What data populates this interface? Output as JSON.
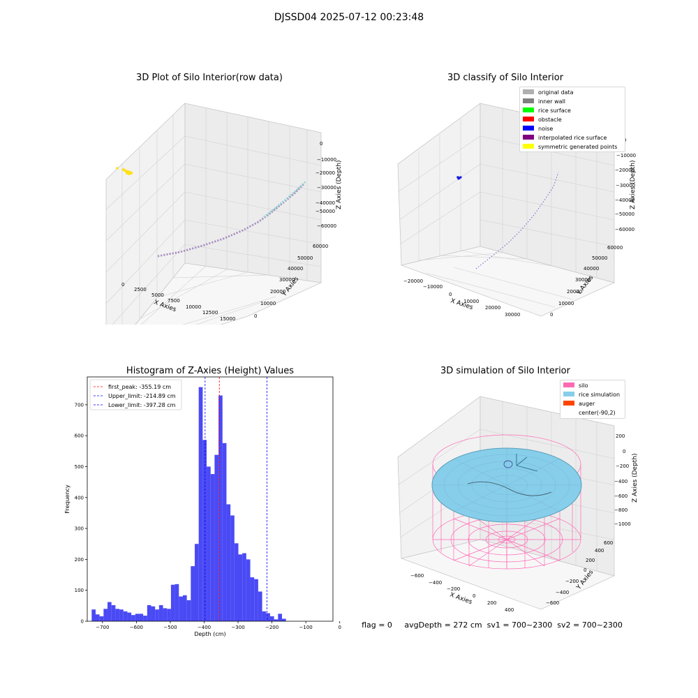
{
  "figure": {
    "title": "DJSSD04 2025-07-12 00:23:48"
  },
  "panels": {
    "raw": {
      "title": "3D Plot of Silo Interior(row data)",
      "xlabel": "X Axies",
      "ylabel": "Y Axies",
      "zlabel": "Z Axies (Depth)",
      "x_ticks": [
        "0",
        "2500",
        "5000",
        "7500",
        "10000",
        "12500",
        "15000"
      ],
      "y_ticks": [
        "0",
        "10000",
        "20000",
        "30000",
        "40000",
        "50000",
        "60000"
      ],
      "z_ticks": [
        "0",
        "−10000",
        "−20000",
        "−30000",
        "−40000",
        "−50000",
        "−60000"
      ]
    },
    "classify": {
      "title": "3D classify of Silo Interior",
      "xlabel": "X Axies",
      "ylabel": "Y Axies",
      "zlabel": "Z Axies (Depth)",
      "x_ticks": [
        "−20000",
        "−10000",
        "0",
        "10000",
        "20000",
        "30000"
      ],
      "y_ticks": [
        "0",
        "10000",
        "20000",
        "30000",
        "40000",
        "50000",
        "60000"
      ],
      "z_ticks": [
        "0",
        "−10000",
        "−20000",
        "−30000",
        "−40000",
        "−50000",
        "−60000"
      ],
      "legend": [
        {
          "label": "original data",
          "color": "#b0b0b0"
        },
        {
          "label": "inner wall",
          "color": "#808080"
        },
        {
          "label": "rice surface",
          "color": "#00ff00"
        },
        {
          "label": "obstacle",
          "color": "#ff0000"
        },
        {
          "label": "noise",
          "color": "#0000ff"
        },
        {
          "label": "interpolated rice surface",
          "color": "#800080"
        },
        {
          "label": "symmetric generated points",
          "color": "#ffff00"
        }
      ]
    },
    "simulation": {
      "title": "3D simulation of Silo Interior",
      "xlabel": "X Axies",
      "ylabel": "Y Axies",
      "zlabel": "Z Axies (Depth)",
      "x_ticks": [
        "−600",
        "−400",
        "−200",
        "0",
        "200",
        "400"
      ],
      "y_ticks": [
        "−600",
        "−400",
        "−200",
        "0",
        "200",
        "400",
        "600"
      ],
      "z_ticks": [
        "200",
        "0",
        "−200",
        "−400",
        "−600",
        "−800",
        "−1000"
      ],
      "legend": [
        {
          "label": "silo",
          "color": "#ff69b4"
        },
        {
          "label": "rice simulation",
          "color": "#87ceeb"
        },
        {
          "label": "auger",
          "color": "#ff4500"
        },
        {
          "label": "center(-90,2)",
          "color": ""
        }
      ]
    }
  },
  "chart_data": {
    "type": "bar",
    "title": "Histogram of Z-Axies (Height) Values",
    "xlabel": "Depth (cm)",
    "ylabel": "Frequency",
    "xlim": [
      -745,
      -20
    ],
    "ylim": [
      0,
      790
    ],
    "x_ticks": [
      -700,
      -600,
      -500,
      -400,
      -300,
      -200,
      -100,
      0
    ],
    "y_ticks": [
      0,
      100,
      200,
      300,
      400,
      500,
      600,
      700
    ],
    "bin_start": -732,
    "bin_width": 11.7,
    "values": [
      38,
      22,
      16,
      40,
      62,
      52,
      40,
      38,
      32,
      28,
      20,
      24,
      24,
      18,
      52,
      48,
      38,
      52,
      42,
      40,
      118,
      120,
      80,
      84,
      68,
      178,
      250,
      757,
      586,
      500,
      476,
      538,
      730,
      576,
      378,
      342,
      252,
      216,
      220,
      200,
      142,
      136,
      96,
      32,
      26,
      16,
      6,
      24,
      8
    ],
    "lines": [
      {
        "label": "first_peak: -355.19 cm",
        "x": -355.19,
        "color": "#ff0000"
      },
      {
        "label": "Upper_limit: -214.89 cm",
        "x": -214.89,
        "color": "#0000ff"
      },
      {
        "label": "Lower_limit: -397.28 cm",
        "x": -397.28,
        "color": "#0000ff"
      }
    ],
    "bar_color": "#4a4af5",
    "legend_position": "top-left"
  },
  "status": {
    "text": "flag = 0     avgDepth = 272 cm  sv1 = 700~2300  sv2 = 700~2300"
  }
}
